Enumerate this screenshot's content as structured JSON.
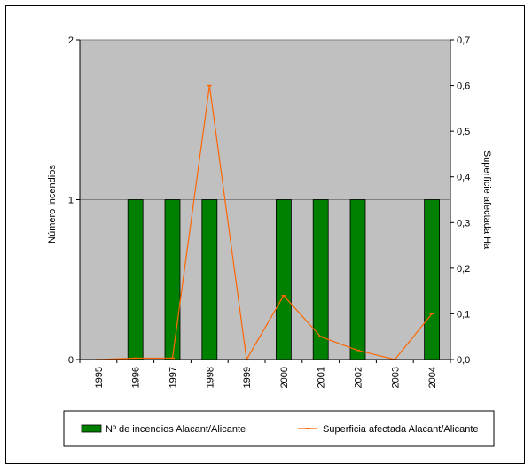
{
  "chart_data": {
    "type": "bar",
    "categories": [
      "1995",
      "1996",
      "1997",
      "1998",
      "1999",
      "2000",
      "2001",
      "2002",
      "2003",
      "2004"
    ],
    "series": [
      {
        "name": "Nº de incendios Alacant/Alicante",
        "type": "bar",
        "axis": "left",
        "color": "#008000",
        "values": [
          0,
          1,
          1,
          1,
          0,
          1,
          1,
          1,
          0,
          1
        ]
      },
      {
        "name": "Superficia afectada Alacant/Alicante",
        "type": "line",
        "axis": "right",
        "color": "#FF6600",
        "values": [
          0.0,
          0.003,
          0.003,
          0.6,
          0.0,
          0.14,
          0.05,
          0.02,
          0.0,
          0.1
        ]
      }
    ],
    "ylabel": "Número incendios",
    "ylabel_right": "Superficie afectada Ha",
    "ylim": [
      0,
      2
    ],
    "ylim_right": [
      0,
      0.7
    ],
    "yticks": [
      "0",
      "1",
      "2"
    ],
    "yticks_right": [
      "0,0",
      "0,1",
      "0,2",
      "0,3",
      "0,4",
      "0,5",
      "0,6",
      "0,7"
    ],
    "plot_background": "#C0C0C0",
    "grid": true,
    "legend_position": "bottom"
  }
}
